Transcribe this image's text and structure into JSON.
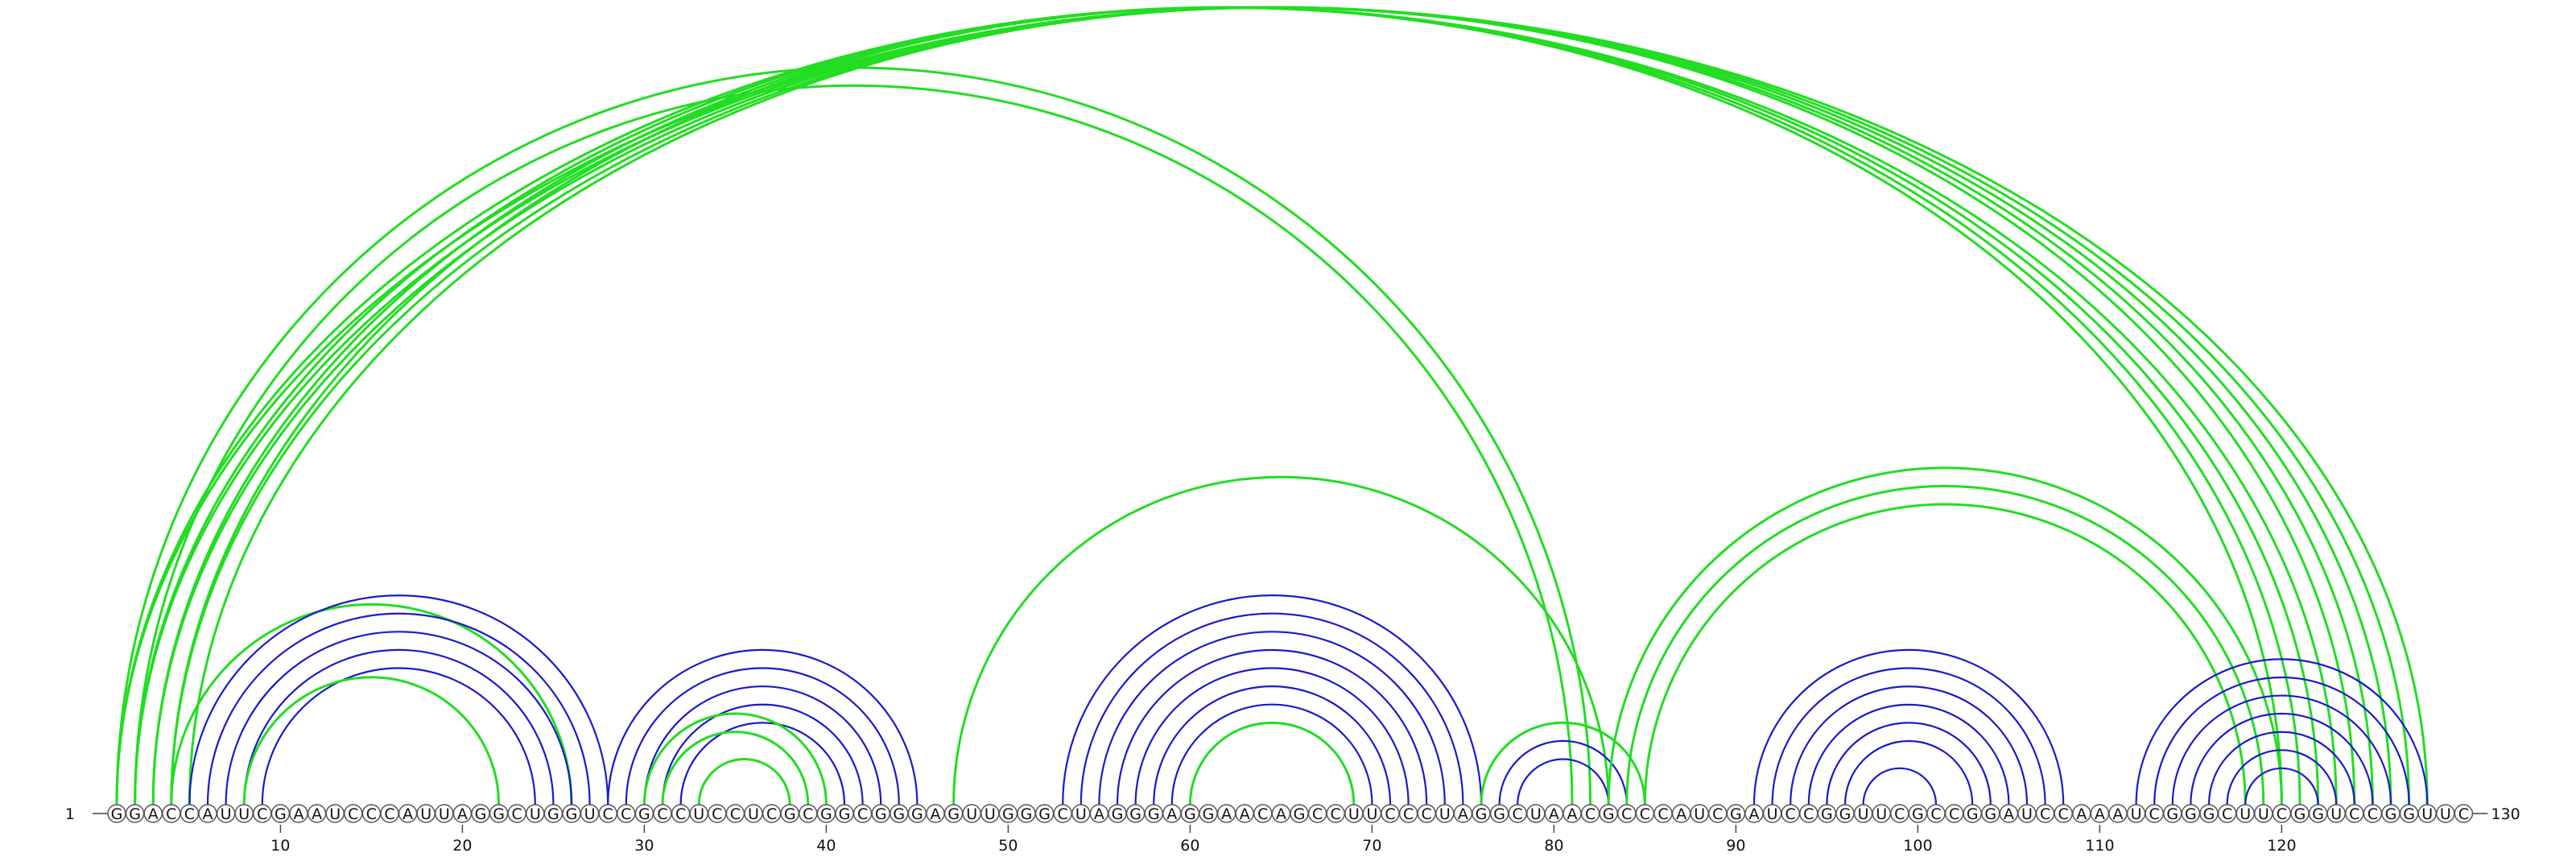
{
  "diagram": {
    "type": "rna-arc-diagram",
    "sequence": "GGACCAUUCGAAUCCCAUUAGGCUGGUCCGCCUCCUCGCGGCGGGAGUUGGGCUAGGGAGGAACAGCCUUCCCUAGGCUAACGCCCAUCGAUCCGGUUCGCCGGAUCCAAAUCGGGCUUCGGUCCGGUUC",
    "start_label": "1",
    "end_label": "130",
    "ticks": [
      10,
      20,
      30,
      40,
      50,
      60,
      70,
      80,
      90,
      100,
      110,
      120
    ],
    "colors": {
      "green": "#22dd22",
      "blue": "#1a1acc"
    },
    "arcs": [
      {
        "i": 1,
        "j": 128,
        "color": "green"
      },
      {
        "i": 2,
        "j": 127,
        "color": "green"
      },
      {
        "i": 3,
        "j": 126,
        "color": "green"
      },
      {
        "i": 4,
        "j": 125,
        "color": "green"
      },
      {
        "i": 5,
        "j": 124,
        "color": "green"
      },
      {
        "i": 1,
        "j": 82,
        "color": "green"
      },
      {
        "i": 2,
        "j": 81,
        "color": "green"
      },
      {
        "i": 1,
        "j": 123,
        "color": "green"
      },
      {
        "i": 2,
        "j": 122,
        "color": "green"
      },
      {
        "i": 3,
        "j": 121,
        "color": "green"
      },
      {
        "i": 4,
        "j": 120,
        "color": "green"
      },
      {
        "i": 4,
        "j": 26,
        "color": "green"
      },
      {
        "i": 5,
        "j": 28,
        "color": "blue"
      },
      {
        "i": 6,
        "j": 27,
        "color": "blue"
      },
      {
        "i": 7,
        "j": 26,
        "color": "blue"
      },
      {
        "i": 8,
        "j": 25,
        "color": "blue"
      },
      {
        "i": 9,
        "j": 24,
        "color": "blue"
      },
      {
        "i": 8,
        "j": 22,
        "color": "green"
      },
      {
        "i": 28,
        "j": 45,
        "color": "blue"
      },
      {
        "i": 29,
        "j": 44,
        "color": "blue"
      },
      {
        "i": 30,
        "j": 43,
        "color": "blue"
      },
      {
        "i": 31,
        "j": 42,
        "color": "blue"
      },
      {
        "i": 32,
        "j": 41,
        "color": "blue"
      },
      {
        "i": 30,
        "j": 40,
        "color": "green"
      },
      {
        "i": 31,
        "j": 39,
        "color": "green"
      },
      {
        "i": 33,
        "j": 38,
        "color": "green"
      },
      {
        "i": 47,
        "j": 83,
        "color": "green"
      },
      {
        "i": 53,
        "j": 76,
        "color": "blue"
      },
      {
        "i": 54,
        "j": 75,
        "color": "blue"
      },
      {
        "i": 55,
        "j": 74,
        "color": "blue"
      },
      {
        "i": 56,
        "j": 73,
        "color": "blue"
      },
      {
        "i": 57,
        "j": 72,
        "color": "blue"
      },
      {
        "i": 58,
        "j": 71,
        "color": "blue"
      },
      {
        "i": 59,
        "j": 70,
        "color": "blue"
      },
      {
        "i": 60,
        "j": 69,
        "color": "green"
      },
      {
        "i": 76,
        "j": 85,
        "color": "green"
      },
      {
        "i": 77,
        "j": 84,
        "color": "blue"
      },
      {
        "i": 78,
        "j": 83,
        "color": "blue"
      },
      {
        "i": 83,
        "j": 120,
        "color": "green"
      },
      {
        "i": 84,
        "j": 119,
        "color": "green"
      },
      {
        "i": 85,
        "j": 118,
        "color": "green"
      },
      {
        "i": 91,
        "j": 108,
        "color": "blue"
      },
      {
        "i": 92,
        "j": 107,
        "color": "blue"
      },
      {
        "i": 93,
        "j": 106,
        "color": "blue"
      },
      {
        "i": 94,
        "j": 105,
        "color": "blue"
      },
      {
        "i": 95,
        "j": 104,
        "color": "blue"
      },
      {
        "i": 96,
        "j": 103,
        "color": "blue"
      },
      {
        "i": 97,
        "j": 101,
        "color": "blue"
      },
      {
        "i": 112,
        "j": 128,
        "color": "blue"
      },
      {
        "i": 113,
        "j": 127,
        "color": "blue"
      },
      {
        "i": 114,
        "j": 126,
        "color": "blue"
      },
      {
        "i": 115,
        "j": 125,
        "color": "blue"
      },
      {
        "i": 116,
        "j": 124,
        "color": "blue"
      },
      {
        "i": 117,
        "j": 123,
        "color": "blue"
      },
      {
        "i": 118,
        "j": 122,
        "color": "blue"
      }
    ]
  }
}
